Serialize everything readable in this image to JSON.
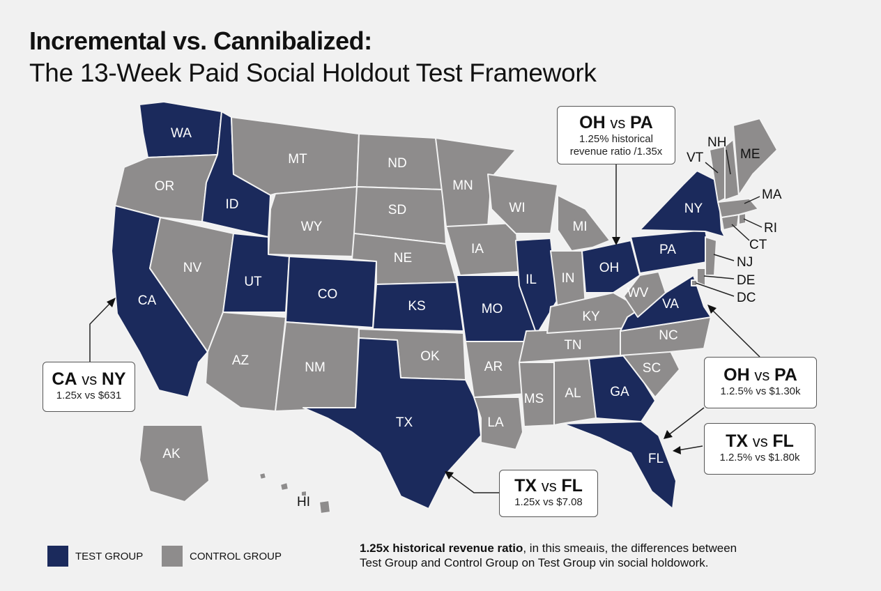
{
  "header": {
    "title": "Incremental vs. Cannibalized:",
    "subtitle": "The 13-Week Paid Social Holdout Test Framework"
  },
  "colors": {
    "test": "#1b2a5c",
    "control": "#8e8c8c",
    "background": "#f1f1f1"
  },
  "states": {
    "test": [
      "WA",
      "ID",
      "CA",
      "UT",
      "CO",
      "KS",
      "MO",
      "IL",
      "OH",
      "PA",
      "NY",
      "VA",
      "TX",
      "GA",
      "FL"
    ],
    "control": [
      "OR",
      "MT",
      "ND",
      "SD",
      "WY",
      "NV",
      "NE",
      "MN",
      "WI",
      "MI",
      "IA",
      "IN",
      "AZ",
      "NM",
      "OK",
      "AR",
      "LA",
      "MS",
      "AL",
      "TN",
      "KY",
      "WV",
      "NC",
      "SC",
      "ME",
      "VT",
      "NH",
      "MA",
      "RI",
      "CT",
      "NJ",
      "DE",
      "DC",
      "AK",
      "HI"
    ]
  },
  "callouts": {
    "ca_ny": {
      "a": "CA",
      "vs": "vs",
      "b": "NY",
      "detail": "1.25x vs $631"
    },
    "oh_pa_top": {
      "a": "OH",
      "vs": "vs",
      "b": "PA",
      "detail_line1": "1.25% historical",
      "detail_line2": "revenue ratio /1.35x"
    },
    "oh_pa_right": {
      "a": "OH",
      "vs": "vs",
      "b": "PA",
      "detail": "1.2.5% vs $1.30k"
    },
    "tx_fl_right": {
      "a": "TX",
      "vs": "vs",
      "b": "FL",
      "detail": "1.2.5% vs $1.80k"
    },
    "tx_fl_bottom": {
      "a": "TX",
      "vs": "vs",
      "b": "FL",
      "detail": "1.25x vs $7.08"
    }
  },
  "legend": {
    "test_label": "TEST GROUP",
    "control_label": "CONTROL GROUP"
  },
  "note": {
    "bold": "1.25x historical revenue ratio",
    "rest": ", in this smeaıis, the differences between",
    "line2": "Test Group and Control Group on Test Group vin social holdowork."
  }
}
